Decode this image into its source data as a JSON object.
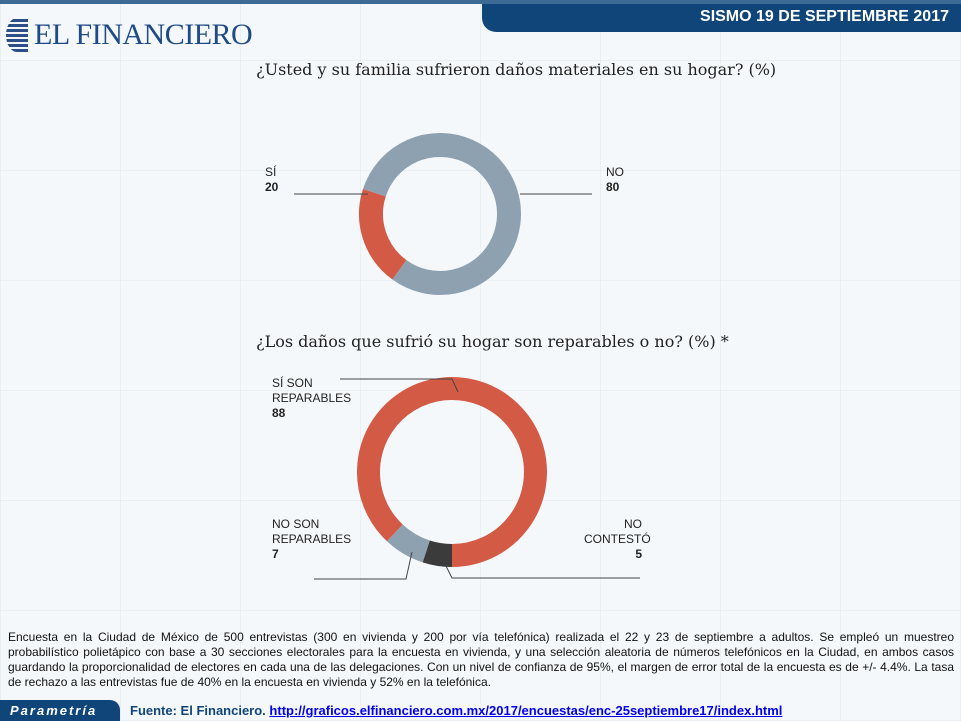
{
  "header": {
    "title": "SISMO 19 DE SEPTIEMBRE 2017",
    "logo": "EL FINANCIERO"
  },
  "chart_data": [
    {
      "type": "pie",
      "title": "¿Usted y su familia sufrieron daños materiales en su hogar? (%)",
      "slices": [
        {
          "label": "SÍ",
          "value": 20,
          "color": "#d35b46"
        },
        {
          "label": "NO",
          "value": 80,
          "color": "#8ea1b1"
        }
      ]
    },
    {
      "type": "pie",
      "title": "¿Los daños que sufrió su hogar son reparables o no? (%) *",
      "slices": [
        {
          "label": "NO CONTESTÓ",
          "value": 5,
          "color": "#3b3b3b"
        },
        {
          "label": "NO SON REPARABLES",
          "value": 7,
          "color": "#8ea1b1"
        },
        {
          "label": "SÍ SON REPARABLES",
          "value": 88,
          "color": "#d35b46"
        }
      ]
    }
  ],
  "labels": {
    "c1_si": "SÍ",
    "c1_si_v": "20",
    "c1_no": "NO",
    "c1_no_v": "80",
    "c2_si_1": "SÍ SON",
    "c2_si_2": "REPARABLES",
    "c2_si_v": "88",
    "c2_no_1": "NO SON",
    "c2_no_2": "REPARABLES",
    "c2_no_v": "7",
    "c2_nc_1": "NO",
    "c2_nc_2": "CONTESTÓ",
    "c2_nc_v": "5"
  },
  "note": "Encuesta en la Ciudad de México de 500 entrevistas (300 en vivienda y 200 por vía telefónica) realizada el 22 y 23 de septiembre a adultos. Se empleó un muestreo probabilístico polietápico con base a 30 secciones electorales para la encuesta en vivienda, y una selección aleatoria de números telefónicos en la Ciudad, en ambos casos guardando la proporcionalidad de electores en cada una de las delegaciones. Con un nivel de confianza de 95%, el margen de error total de la encuesta es de +/- 4.4%. La tasa de rechazo a las entrevistas fue de 40% en la encuesta en vivienda y 52% en la telefónica.",
  "footer": {
    "badge": "Parametría",
    "source_label": "Fuente: El Financiero.",
    "source_url": "http://graficos.elfinanciero.com.mx/2017/encuestas/enc-25septiembre17/index.html"
  }
}
